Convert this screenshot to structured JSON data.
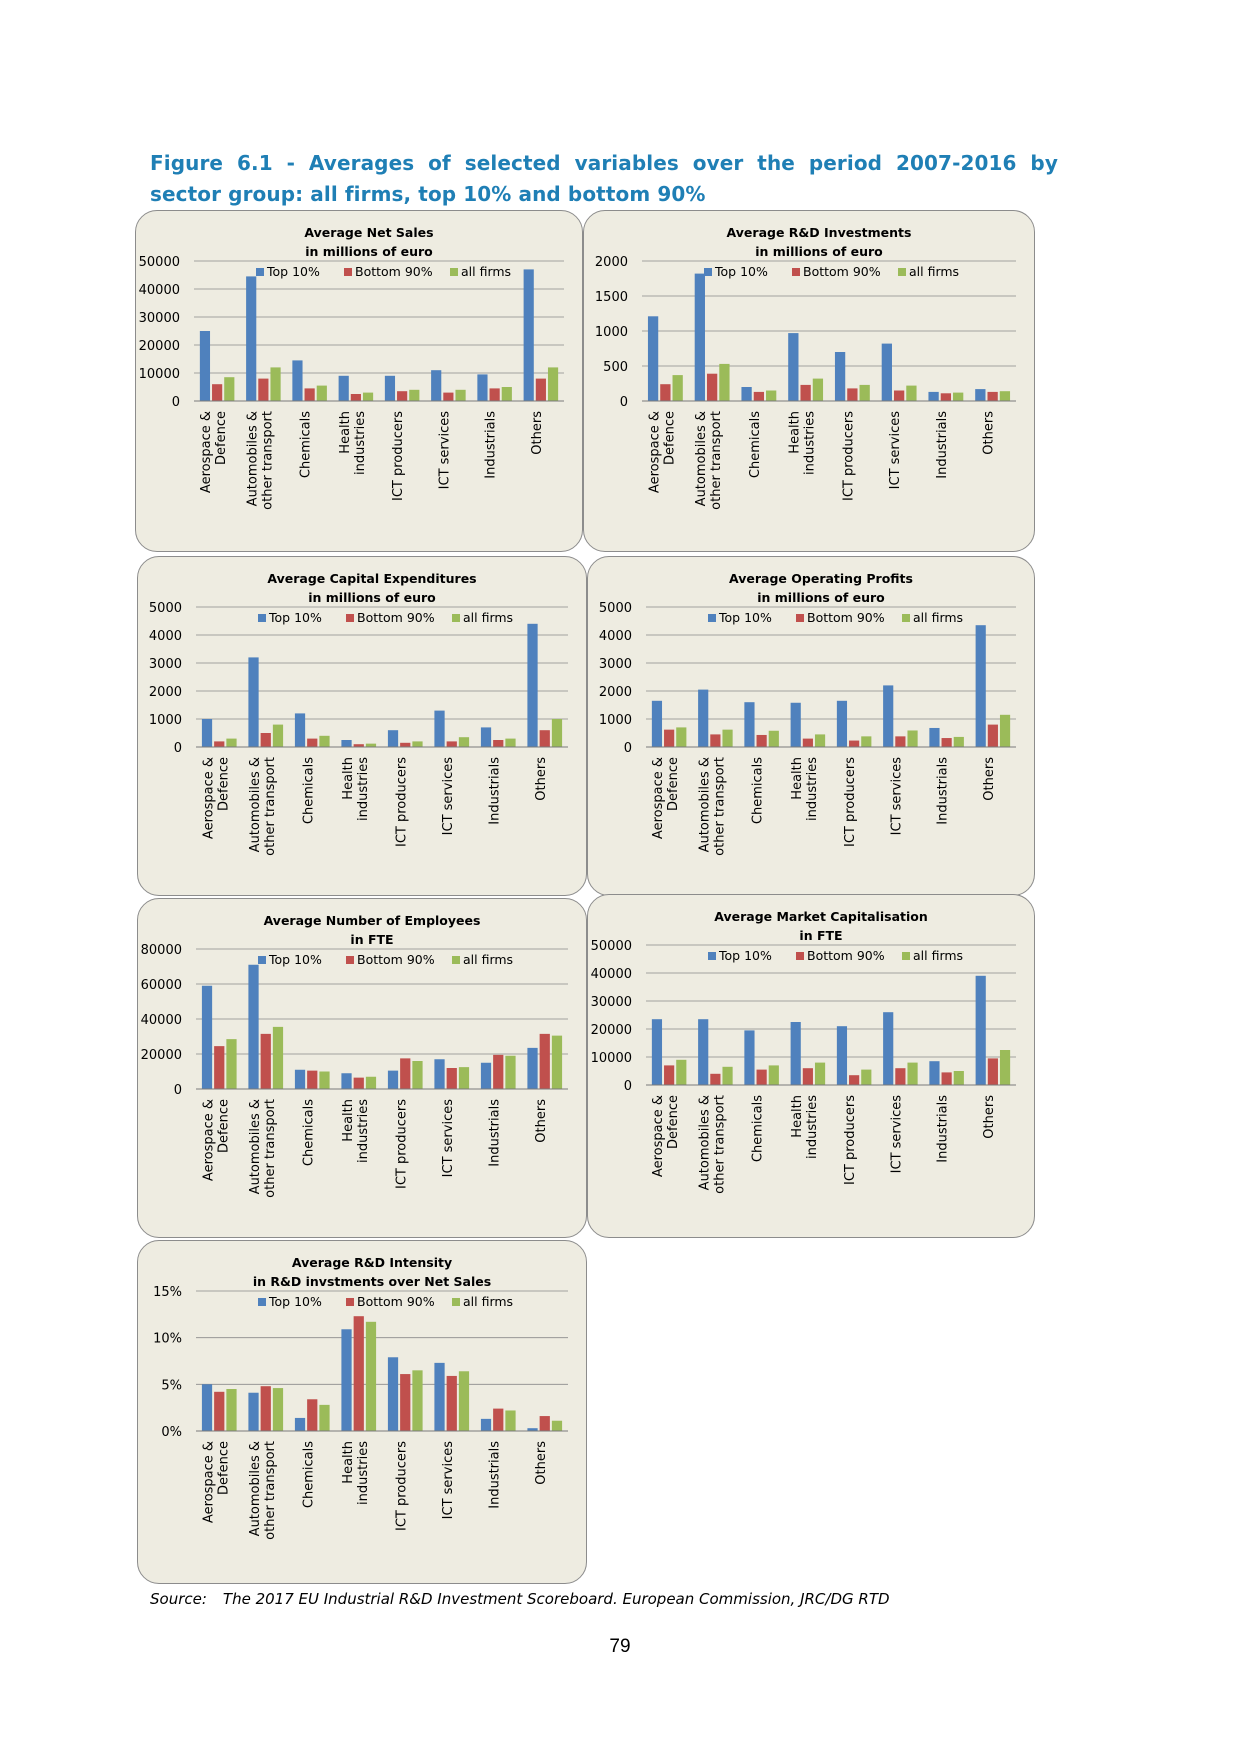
{
  "figure": {
    "title": "Figure 6.1 - Averages of selected variables over the period 2007-2016 by sector group: all firms, top 10% and bottom 90%",
    "source_label": "Source:",
    "source_text": "The 2017 EU Industrial R&D Investment Scoreboard. European Commission, JRC/DG RTD",
    "page_number": "79"
  },
  "colors": {
    "top10": "#4f81bd",
    "bottom90": "#c0504d",
    "all": "#9bbb59",
    "panel_bg": "#eeece1",
    "title": "#1f7fb5"
  },
  "chart_data": [
    {
      "type": "bar",
      "title": "Average Net Sales",
      "subtitle": "in millions of euro",
      "categories": [
        "Aerospace & Defence",
        "Automobiles & other transport",
        "Chemicals",
        "Health industries",
        "ICT producers",
        "ICT services",
        "Industrials",
        "Others"
      ],
      "series": [
        {
          "name": "Top 10%",
          "values": [
            25000,
            44500,
            14500,
            9000,
            9000,
            11000,
            9500,
            47000
          ]
        },
        {
          "name": "Bottom 90%",
          "values": [
            6000,
            8000,
            4500,
            2500,
            3500,
            3000,
            4500,
            8000
          ]
        },
        {
          "name": "all firms",
          "values": [
            8500,
            12000,
            5500,
            3000,
            4000,
            4000,
            5000,
            12000
          ]
        }
      ],
      "ylim": [
        0,
        50000
      ],
      "yticks": [
        "0",
        "10000",
        "20000",
        "30000",
        "40000",
        "50000"
      ],
      "legend": "top"
    },
    {
      "type": "bar",
      "title": "Average R&D Investments",
      "subtitle": "in millions of euro",
      "categories": [
        "Aerospace & Defence",
        "Automobiles & other transport",
        "Chemicals",
        "Health industries",
        "ICT producers",
        "ICT services",
        "Industrials",
        "Others"
      ],
      "series": [
        {
          "name": "Top 10%",
          "values": [
            1210,
            1820,
            200,
            970,
            700,
            820,
            130,
            170
          ]
        },
        {
          "name": "Bottom 90%",
          "values": [
            240,
            390,
            130,
            230,
            180,
            150,
            110,
            130
          ]
        },
        {
          "name": "all firms",
          "values": [
            370,
            530,
            150,
            320,
            230,
            220,
            120,
            140
          ]
        }
      ],
      "ylim": [
        0,
        2000
      ],
      "yticks": [
        "0",
        "500",
        "1000",
        "1500",
        "2000"
      ],
      "legend": "top"
    },
    {
      "type": "bar",
      "title": "Average Capital Expenditures",
      "subtitle": "in millions of euro",
      "categories": [
        "Aerospace & Defence",
        "Automobiles & other transport",
        "Chemicals",
        "Health industries",
        "ICT producers",
        "ICT services",
        "Industrials",
        "Others"
      ],
      "series": [
        {
          "name": "Top 10%",
          "values": [
            1000,
            3200,
            1200,
            250,
            600,
            1300,
            700,
            4400
          ]
        },
        {
          "name": "Bottom 90%",
          "values": [
            200,
            500,
            300,
            100,
            150,
            200,
            250,
            600
          ]
        },
        {
          "name": "all firms",
          "values": [
            300,
            800,
            400,
            120,
            200,
            350,
            300,
            1000
          ]
        }
      ],
      "ylim": [
        0,
        5000
      ],
      "yticks": [
        "0",
        "1000",
        "2000",
        "3000",
        "4000",
        "5000"
      ],
      "legend": "top"
    },
    {
      "type": "bar",
      "title": "Average Operating Profits",
      "subtitle": "in millions of euro",
      "categories": [
        "Aerospace & Defence",
        "Automobiles & other transport",
        "Chemicals",
        "Health industries",
        "ICT producers",
        "ICT services",
        "Industrials",
        "Others"
      ],
      "series": [
        {
          "name": "Top 10%",
          "values": [
            1650,
            2050,
            1600,
            1580,
            1650,
            2200,
            680,
            4350
          ]
        },
        {
          "name": "Bottom 90%",
          "values": [
            620,
            450,
            430,
            300,
            230,
            380,
            320,
            800
          ]
        },
        {
          "name": "all firms",
          "values": [
            700,
            620,
            580,
            450,
            380,
            590,
            360,
            1150
          ]
        }
      ],
      "ylim": [
        0,
        5000
      ],
      "yticks": [
        "0",
        "1000",
        "2000",
        "3000",
        "4000",
        "5000"
      ],
      "legend": "top"
    },
    {
      "type": "bar",
      "title": "Average Number of Employees",
      "subtitle": "in FTE",
      "categories": [
        "Aerospace & Defence",
        "Automobiles & other transport",
        "Chemicals",
        "Health industries",
        "ICT producers",
        "ICT services",
        "Industrials",
        "Others"
      ],
      "series": [
        {
          "name": "Top 10%",
          "values": [
            59000,
            71000,
            11000,
            9000,
            10500,
            17000,
            15000,
            23500
          ]
        },
        {
          "name": "Bottom 90%",
          "values": [
            24500,
            31500,
            10500,
            6500,
            17500,
            12000,
            19500,
            31500
          ]
        },
        {
          "name": "all firms",
          "values": [
            28500,
            35500,
            10000,
            7000,
            16000,
            12500,
            19000,
            30500
          ]
        }
      ],
      "ylim": [
        0,
        80000
      ],
      "yticks": [
        "0",
        "20000",
        "40000",
        "60000",
        "80000"
      ],
      "legend": "top"
    },
    {
      "type": "bar",
      "title": "Average Market Capitalisation",
      "subtitle": "in FTE",
      "categories": [
        "Aerospace & Defence",
        "Automobiles & other transport",
        "Chemicals",
        "Health industries",
        "ICT producers",
        "ICT services",
        "Industrials",
        "Others"
      ],
      "series": [
        {
          "name": "Top 10%",
          "values": [
            23500,
            23500,
            19500,
            22500,
            21000,
            26000,
            8500,
            39000
          ]
        },
        {
          "name": "Bottom 90%",
          "values": [
            7000,
            4000,
            5500,
            6000,
            3500,
            6000,
            4500,
            9500
          ]
        },
        {
          "name": "all firms",
          "values": [
            9000,
            6500,
            7000,
            8000,
            5500,
            8000,
            5000,
            12500
          ]
        }
      ],
      "ylim": [
        0,
        50000
      ],
      "yticks": [
        "0",
        "10000",
        "20000",
        "30000",
        "40000",
        "50000"
      ],
      "legend": "top"
    },
    {
      "type": "bar",
      "title": "Average R&D Intensity",
      "subtitle": "in R&D invstments over Net Sales",
      "categories": [
        "Aerospace & Defence",
        "Automobiles & other transport",
        "Chemicals",
        "Health industries",
        "ICT producers",
        "ICT services",
        "Industrials",
        "Others"
      ],
      "series": [
        {
          "name": "Top 10%",
          "values": [
            5.0,
            4.1,
            1.4,
            10.9,
            7.9,
            7.3,
            1.3,
            0.3
          ]
        },
        {
          "name": "Bottom 90%",
          "values": [
            4.2,
            4.8,
            3.4,
            12.3,
            6.1,
            5.9,
            2.4,
            1.6
          ]
        },
        {
          "name": "all firms",
          "values": [
            4.5,
            4.6,
            2.8,
            11.7,
            6.5,
            6.4,
            2.2,
            1.1
          ]
        }
      ],
      "ylim": [
        0,
        15
      ],
      "yticks": [
        "0%",
        "5%",
        "10%",
        "15%"
      ],
      "legend": "top"
    }
  ]
}
